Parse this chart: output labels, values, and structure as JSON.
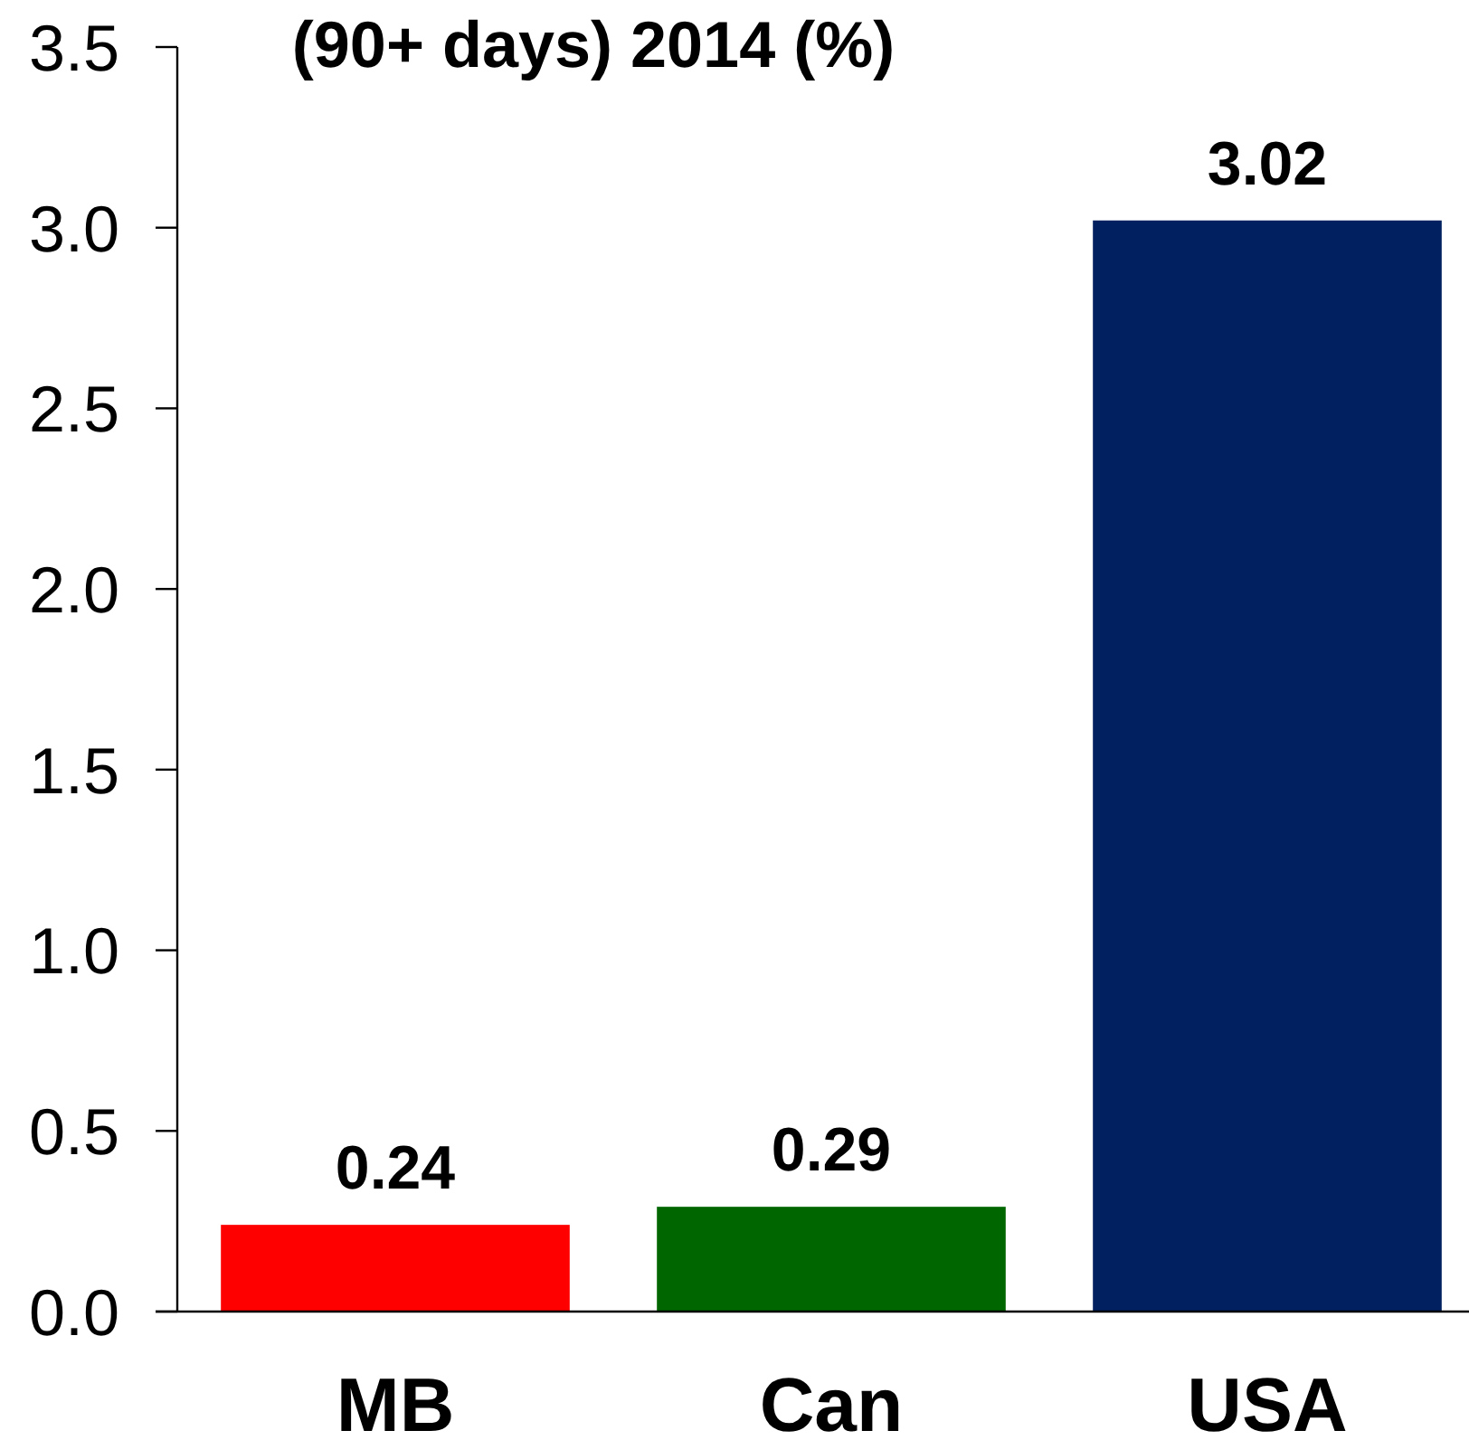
{
  "chart_data": {
    "type": "bar",
    "title": "(90+ days) 2014 (%)",
    "categories": [
      "MB",
      "Can",
      "USA"
    ],
    "values": [
      0.24,
      0.29,
      3.02
    ],
    "colors": [
      "#ff0000",
      "#006600",
      "#002060"
    ],
    "ylim": [
      0,
      3.5
    ],
    "yticks": [
      {
        "value": 0,
        "label": "0.0"
      },
      {
        "value": 0.5,
        "label": "0.5"
      },
      {
        "value": 1,
        "label": "1.0"
      },
      {
        "value": 1.5,
        "label": "1.5"
      },
      {
        "value": 2,
        "label": "2.0"
      },
      {
        "value": 2.5,
        "label": "2.5"
      },
      {
        "value": 3,
        "label": "3.0"
      },
      {
        "value": 3.5,
        "label": "3.5"
      }
    ],
    "data_labels": true,
    "grid": false
  }
}
